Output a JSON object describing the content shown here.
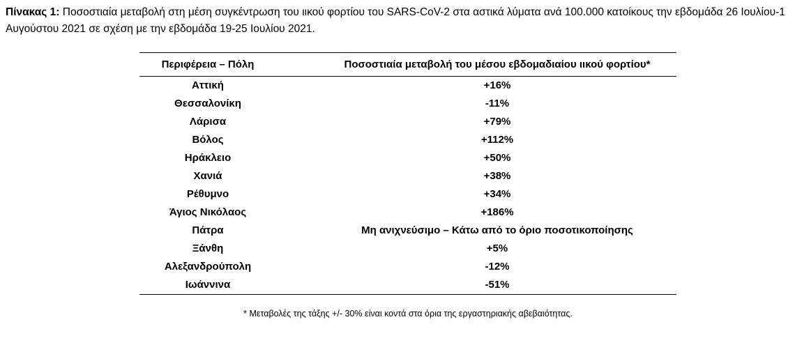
{
  "caption": {
    "label": "Πίνακας 1:",
    "text": "Ποσοστιαία μεταβολή στη μέση συγκέντρωση του ιικού φορτίου του SARS-CoV-2 στα αστικά λύματα ανά 100.000 κατοίκους την εβδομάδα 26 Ιουλίου-1 Αυγούστου 2021 σε σχέση με την εβδομάδα 19-25 Ιουλίου 2021."
  },
  "table": {
    "headers": [
      "Περιφέρεια – Πόλη",
      "Ποσοστιαία μεταβολή του μέσου εβδομαδιαίου ιικού φορτίου*"
    ],
    "rows": [
      [
        "Αττική",
        "+16%"
      ],
      [
        "Θεσσαλονίκη",
        "-11%"
      ],
      [
        "Λάρισα",
        "+79%"
      ],
      [
        "Βόλος",
        "+112%"
      ],
      [
        "Ηράκλειο",
        "+50%"
      ],
      [
        "Χανιά",
        "+38%"
      ],
      [
        "Ρέθυμνο",
        "+34%"
      ],
      [
        "Άγιος Νικόλαος",
        "+186%"
      ],
      [
        "Πάτρα",
        "Μη ανιχνεύσιμο – Κάτω από το όριο ποσοτικοποίησης"
      ],
      [
        "Ξάνθη",
        "+5%"
      ],
      [
        "Αλεξανδρούπολη",
        "-12%"
      ],
      [
        "Ιωάννινα",
        "-51%"
      ]
    ]
  },
  "footnote": "* Μεταβολές της τάξης +/- 30% είναι κοντά στα όρια της εργαστηριακής αβεβαιότητας."
}
